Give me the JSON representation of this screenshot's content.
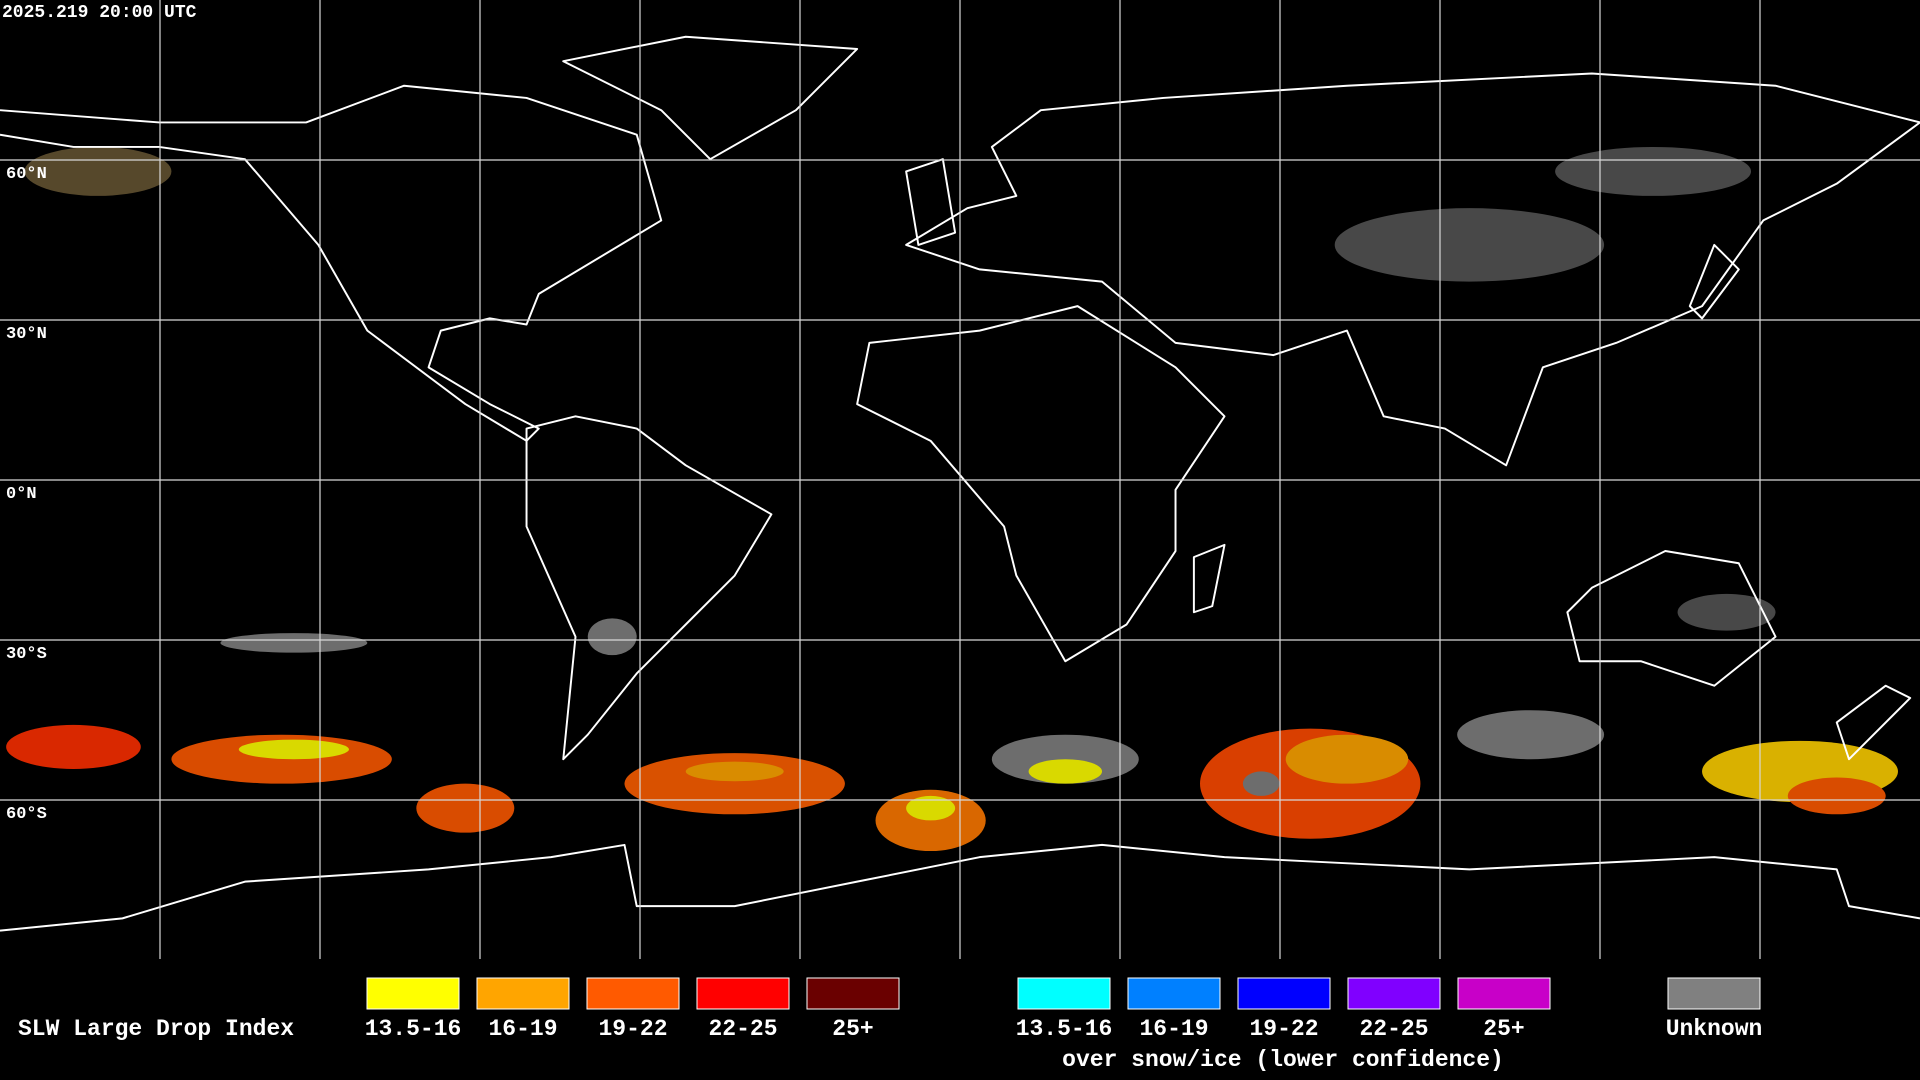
{
  "header": {
    "timestamp": "2025.219 20:00 UTC"
  },
  "map": {
    "lat_labels": [
      "60°N",
      "30°N",
      "0°N",
      "30°S",
      "60°S"
    ]
  },
  "legend": {
    "title": "SLW Large Drop Index",
    "water": [
      {
        "label": "13.5-16",
        "color": "#ffff00"
      },
      {
        "label": "16-19",
        "color": "#ffa500"
      },
      {
        "label": "19-22",
        "color": "#ff5a00"
      },
      {
        "label": "22-25",
        "color": "#ff0000"
      },
      {
        "label": "25+",
        "color": "#6a0000"
      }
    ],
    "snow_ice": [
      {
        "label": "13.5-16",
        "color": "#00ffff"
      },
      {
        "label": "16-19",
        "color": "#0080ff"
      },
      {
        "label": "19-22",
        "color": "#0000ff"
      },
      {
        "label": "22-25",
        "color": "#8000ff"
      },
      {
        "label": "25+",
        "color": "#c800c8"
      }
    ],
    "snow_ice_note": "over snow/ice (lower confidence)",
    "unknown": {
      "label": "Unknown",
      "color": "#808080"
    }
  }
}
